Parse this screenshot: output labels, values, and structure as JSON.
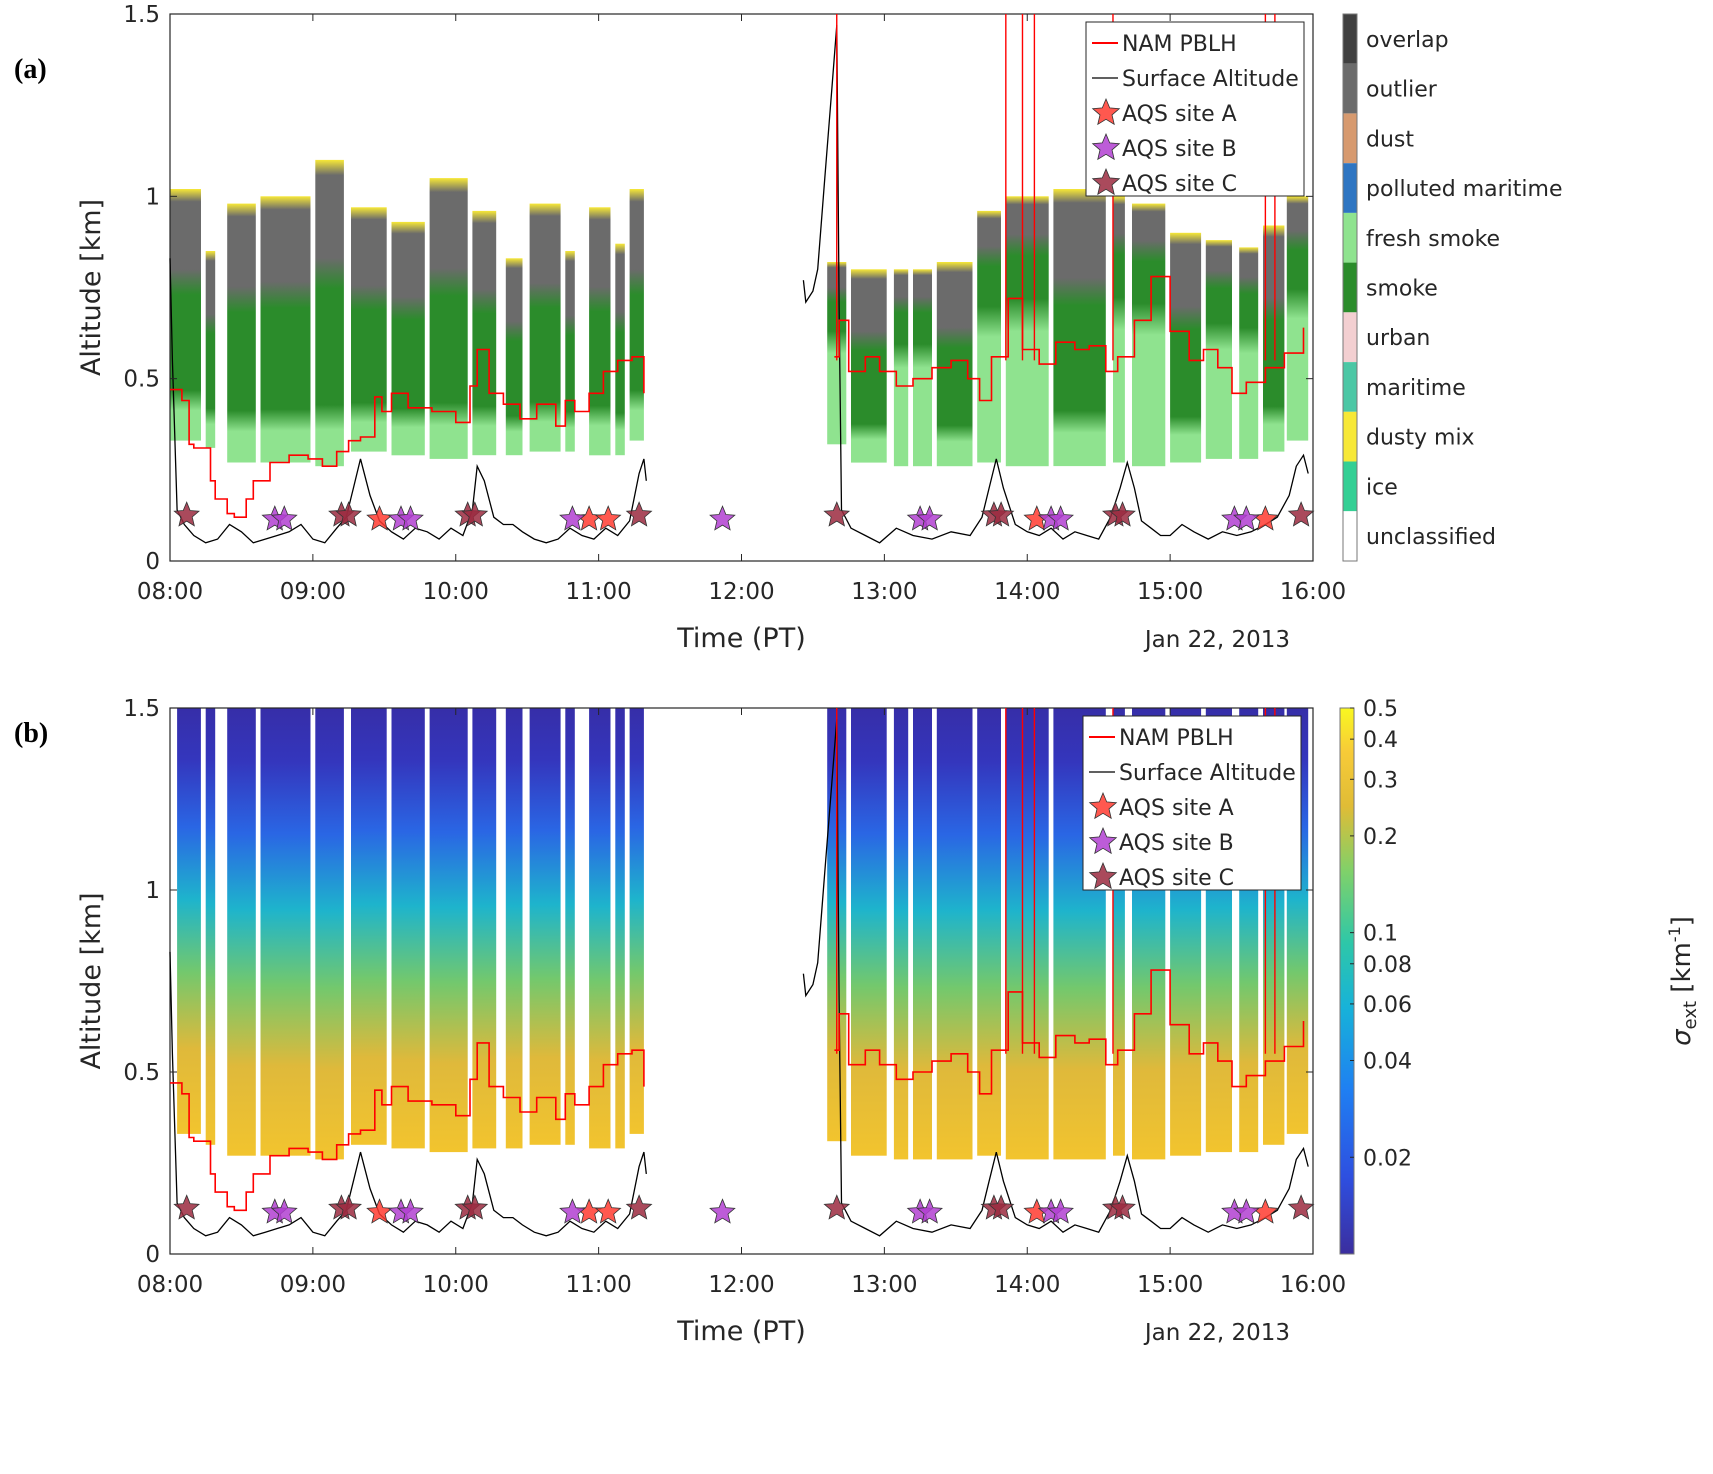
{
  "chart_data": [
    {
      "panel_label": "(a)",
      "type": "heatmap",
      "xlabel": "Time (PT)",
      "ylabel": "Altitude [km]",
      "date_label": "Jan 22, 2013",
      "x_ticks": [
        "08:00",
        "09:00",
        "10:00",
        "11:00",
        "12:00",
        "13:00",
        "14:00",
        "15:00",
        "16:00"
      ],
      "xlim": [
        "08:00",
        "16:00"
      ],
      "y_ticks": [
        0,
        0.5,
        1,
        1.5
      ],
      "ylim": [
        0,
        1.5
      ],
      "legend": {
        "placement": "top-right",
        "entries": [
          "NAM PBLH",
          "Surface Altitude",
          "AQS site A",
          "AQS site B",
          "AQS site C"
        ]
      },
      "colorbar": {
        "type": "categorical",
        "categories": [
          "overlap",
          "outlier",
          "dust",
          "polluted maritime",
          "fresh smoke",
          "smoke",
          "urban",
          "maritime",
          "dusty mix",
          "ice",
          "unclassified"
        ],
        "colors": [
          "#404040",
          "#6b6b6b",
          "#d79a6f",
          "#2e75c2",
          "#8fe38f",
          "#2b8c2b",
          "#f3cfd1",
          "#4cc7a5",
          "#f7e837",
          "#34cf94",
          "#ffffff"
        ]
      },
      "segments": [
        {
          "start": "08:00",
          "end": "08:13",
          "base_km": 0.33,
          "top_km": 1.02
        },
        {
          "start": "08:15",
          "end": "08:19",
          "base_km": 0.31,
          "top_km": 0.85
        },
        {
          "start": "08:24",
          "end": "08:36",
          "base_km": 0.27,
          "top_km": 0.98
        },
        {
          "start": "08:38",
          "end": "08:59",
          "base_km": 0.27,
          "top_km": 1.0
        },
        {
          "start": "09:01",
          "end": "09:13",
          "base_km": 0.26,
          "top_km": 1.1
        },
        {
          "start": "09:16",
          "end": "09:31",
          "base_km": 0.3,
          "top_km": 0.97
        },
        {
          "start": "09:33",
          "end": "09:47",
          "base_km": 0.29,
          "top_km": 0.93
        },
        {
          "start": "09:49",
          "end": "10:05",
          "base_km": 0.28,
          "top_km": 1.05
        },
        {
          "start": "10:07",
          "end": "10:17",
          "base_km": 0.29,
          "top_km": 0.96
        },
        {
          "start": "10:21",
          "end": "10:28",
          "base_km": 0.29,
          "top_km": 0.83
        },
        {
          "start": "10:31",
          "end": "10:44",
          "base_km": 0.3,
          "top_km": 0.98
        },
        {
          "start": "10:46",
          "end": "10:50",
          "base_km": 0.3,
          "top_km": 0.85
        },
        {
          "start": "10:56",
          "end": "11:05",
          "base_km": 0.29,
          "top_km": 0.97
        },
        {
          "start": "11:07",
          "end": "11:11",
          "base_km": 0.29,
          "top_km": 0.87
        },
        {
          "start": "11:13",
          "end": "11:19",
          "base_km": 0.33,
          "top_km": 1.02
        },
        {
          "start": "12:36",
          "end": "12:44",
          "base_km": 0.32,
          "top_km": 0.82
        },
        {
          "start": "12:46",
          "end": "13:01",
          "base_km": 0.27,
          "top_km": 0.8
        },
        {
          "start": "13:04",
          "end": "13:10",
          "base_km": 0.26,
          "top_km": 0.8
        },
        {
          "start": "13:12",
          "end": "13:20",
          "base_km": 0.26,
          "top_km": 0.8
        },
        {
          "start": "13:22",
          "end": "13:37",
          "base_km": 0.26,
          "top_km": 0.82
        },
        {
          "start": "13:39",
          "end": "13:49",
          "base_km": 0.27,
          "top_km": 0.96
        },
        {
          "start": "13:51",
          "end": "14:09",
          "base_km": 0.26,
          "top_km": 1.0
        },
        {
          "start": "14:11",
          "end": "14:33",
          "base_km": 0.26,
          "top_km": 1.02
        },
        {
          "start": "14:36",
          "end": "14:41",
          "base_km": 0.27,
          "top_km": 1.0
        },
        {
          "start": "14:44",
          "end": "14:58",
          "base_km": 0.26,
          "top_km": 0.98
        },
        {
          "start": "15:00",
          "end": "15:13",
          "base_km": 0.27,
          "top_km": 0.9
        },
        {
          "start": "15:15",
          "end": "15:26",
          "base_km": 0.28,
          "top_km": 0.88
        },
        {
          "start": "15:29",
          "end": "15:37",
          "base_km": 0.28,
          "top_km": 0.86
        },
        {
          "start": "15:39",
          "end": "15:48",
          "base_km": 0.3,
          "top_km": 0.92
        },
        {
          "start": "15:49",
          "end": "15:58",
          "base_km": 0.33,
          "top_km": 1.0
        }
      ]
    },
    {
      "panel_label": "(b)",
      "type": "heatmap",
      "xlabel": "Time (PT)",
      "ylabel": "Altitude [km]",
      "date_label": "Jan 22, 2013",
      "x_ticks": [
        "08:00",
        "09:00",
        "10:00",
        "11:00",
        "12:00",
        "13:00",
        "14:00",
        "15:00",
        "16:00"
      ],
      "xlim": [
        "08:00",
        "16:00"
      ],
      "y_ticks": [
        0,
        0.5,
        1,
        1.5
      ],
      "ylim": [
        0,
        1.5
      ],
      "legend": {
        "placement": "top-right",
        "entries": [
          "NAM PBLH",
          "Surface Altitude",
          "AQS site A",
          "AQS site B",
          "AQS site C"
        ]
      },
      "colorbar": {
        "type": "continuous",
        "scale": "log",
        "label_main": "σ",
        "label_sub": "ext",
        "label_unit_open": " [km",
        "label_unit_exp": "-1",
        "label_unit_close": "]",
        "ticks": [
          "0.5",
          "0.4",
          "0.3",
          "0.2",
          "0.1",
          "0.08",
          "0.06",
          "0.04",
          "0.02"
        ],
        "range": [
          0.01,
          0.5
        ]
      },
      "segments": [
        {
          "start": "08:03",
          "end": "08:13",
          "base_km": 0.33
        },
        {
          "start": "08:15",
          "end": "08:19",
          "base_km": 0.3
        },
        {
          "start": "08:24",
          "end": "08:36",
          "base_km": 0.27
        },
        {
          "start": "08:38",
          "end": "08:59",
          "base_km": 0.27
        },
        {
          "start": "09:01",
          "end": "09:13",
          "base_km": 0.26
        },
        {
          "start": "09:16",
          "end": "09:31",
          "base_km": 0.3
        },
        {
          "start": "09:33",
          "end": "09:47",
          "base_km": 0.29
        },
        {
          "start": "09:49",
          "end": "10:05",
          "base_km": 0.28
        },
        {
          "start": "10:07",
          "end": "10:17",
          "base_km": 0.29
        },
        {
          "start": "10:21",
          "end": "10:28",
          "base_km": 0.29
        },
        {
          "start": "10:31",
          "end": "10:44",
          "base_km": 0.3
        },
        {
          "start": "10:46",
          "end": "10:50",
          "base_km": 0.3
        },
        {
          "start": "10:56",
          "end": "11:05",
          "base_km": 0.29
        },
        {
          "start": "11:07",
          "end": "11:11",
          "base_km": 0.29
        },
        {
          "start": "11:13",
          "end": "11:19",
          "base_km": 0.33
        },
        {
          "start": "12:36",
          "end": "12:44",
          "base_km": 0.31
        },
        {
          "start": "12:46",
          "end": "13:01",
          "base_km": 0.27
        },
        {
          "start": "13:04",
          "end": "13:10",
          "base_km": 0.26
        },
        {
          "start": "13:12",
          "end": "13:20",
          "base_km": 0.26
        },
        {
          "start": "13:22",
          "end": "13:37",
          "base_km": 0.26
        },
        {
          "start": "13:39",
          "end": "13:49",
          "base_km": 0.27
        },
        {
          "start": "13:51",
          "end": "14:09",
          "base_km": 0.26
        },
        {
          "start": "14:11",
          "end": "14:33",
          "base_km": 0.26
        },
        {
          "start": "14:36",
          "end": "14:41",
          "base_km": 0.27
        },
        {
          "start": "14:44",
          "end": "14:58",
          "base_km": 0.26
        },
        {
          "start": "15:00",
          "end": "15:13",
          "base_km": 0.27
        },
        {
          "start": "15:15",
          "end": "15:26",
          "base_km": 0.28
        },
        {
          "start": "15:29",
          "end": "15:37",
          "base_km": 0.28
        },
        {
          "start": "15:39",
          "end": "15:48",
          "base_km": 0.3
        },
        {
          "start": "15:49",
          "end": "15:58",
          "base_km": 0.33
        }
      ]
    }
  ],
  "series_colors": {
    "NAM PBLH": "#ff0000",
    "Surface Altitude": "#000000",
    "AQS site A": "#ff3b30",
    "AQS site B": "#b23fd1",
    "AQS site C": "#9b2a3f"
  },
  "nam_pblh": {
    "t": [
      "08:00",
      "08:05",
      "08:08",
      "08:10",
      "08:13",
      "08:17",
      "08:19",
      "08:24",
      "08:27",
      "08:32",
      "08:35",
      "08:42",
      "08:50",
      "08:58",
      "09:04",
      "09:10",
      "09:15",
      "09:20",
      "09:26",
      "09:29",
      "09:33",
      "09:40",
      "09:50",
      "10:00",
      "10:06",
      "10:09",
      "10:14",
      "10:20",
      "10:27",
      "10:34",
      "10:42",
      "10:46",
      "10:50",
      "10:56",
      "11:02",
      "11:08",
      "11:14",
      "11:19",
      "12:39",
      "12:41",
      "12:45",
      "12:52",
      "12:58",
      "13:05",
      "13:12",
      "13:20",
      "13:28",
      "13:35",
      "13:40",
      "13:45",
      "13:52",
      "13:58",
      "14:05",
      "14:12",
      "14:20",
      "14:26",
      "14:33",
      "14:38",
      "14:45",
      "14:52",
      "15:00",
      "15:08",
      "15:14",
      "15:20",
      "15:26",
      "15:32",
      "15:40",
      "15:48",
      "15:56"
    ],
    "km": [
      0.47,
      0.44,
      0.32,
      0.31,
      0.31,
      0.22,
      0.17,
      0.13,
      0.12,
      0.17,
      0.22,
      0.27,
      0.29,
      0.28,
      0.26,
      0.3,
      0.33,
      0.34,
      0.45,
      0.41,
      0.46,
      0.42,
      0.41,
      0.38,
      0.48,
      0.58,
      0.46,
      0.43,
      0.39,
      0.43,
      0.37,
      0.44,
      0.41,
      0.46,
      0.52,
      0.55,
      0.56,
      0.46,
      0.56,
      0.66,
      0.52,
      0.56,
      0.52,
      0.48,
      0.5,
      0.53,
      0.55,
      0.5,
      0.44,
      0.56,
      0.72,
      0.58,
      0.54,
      0.6,
      0.58,
      0.59,
      0.52,
      0.56,
      0.66,
      0.78,
      0.63,
      0.55,
      0.58,
      0.53,
      0.46,
      0.49,
      0.53,
      0.57,
      0.64
    ],
    "spikes": [
      "12:40",
      "13:51",
      "13:58",
      "14:03",
      "14:36",
      "15:40",
      "15:44"
    ]
  },
  "surface_altitude": {
    "t": [
      "08:00",
      "08:01",
      "08:03",
      "08:06",
      "08:10",
      "08:15",
      "08:20",
      "08:25",
      "08:30",
      "08:35",
      "08:40",
      "08:45",
      "08:50",
      "08:55",
      "09:00",
      "09:05",
      "09:10",
      "09:14",
      "09:17",
      "09:20",
      "09:24",
      "09:28",
      "09:33",
      "09:38",
      "09:43",
      "09:48",
      "09:53",
      "09:58",
      "10:03",
      "10:07",
      "10:09",
      "10:12",
      "10:16",
      "10:20",
      "10:24",
      "10:28",
      "10:33",
      "10:38",
      "10:43",
      "10:48",
      "10:53",
      "10:58",
      "11:03",
      "11:08",
      "11:13",
      "11:17",
      "11:19",
      "11:20",
      "12:26",
      "12:27",
      "12:30",
      "12:32",
      "12:35",
      "12:38",
      "12:40",
      "12:41",
      "12:42",
      "12:46",
      "12:52",
      "12:58",
      "13:05",
      "13:12",
      "13:20",
      "13:28",
      "13:36",
      "13:41",
      "13:44",
      "13:47",
      "13:50",
      "13:55",
      "14:00",
      "14:05",
      "14:10",
      "14:15",
      "14:20",
      "14:25",
      "14:30",
      "14:35",
      "14:39",
      "14:42",
      "14:45",
      "14:48",
      "14:52",
      "14:56",
      "15:00",
      "15:05",
      "15:10",
      "15:16",
      "15:22",
      "15:28",
      "15:34",
      "15:40",
      "15:45",
      "15:50",
      "15:53",
      "15:56",
      "15:58"
    ],
    "km": [
      0.83,
      0.55,
      0.14,
      0.1,
      0.07,
      0.05,
      0.06,
      0.1,
      0.08,
      0.05,
      0.06,
      0.07,
      0.08,
      0.1,
      0.06,
      0.05,
      0.09,
      0.12,
      0.2,
      0.28,
      0.18,
      0.11,
      0.08,
      0.06,
      0.09,
      0.08,
      0.06,
      0.09,
      0.07,
      0.14,
      0.26,
      0.22,
      0.12,
      0.1,
      0.1,
      0.08,
      0.06,
      0.05,
      0.06,
      0.09,
      0.07,
      0.06,
      0.09,
      0.07,
      0.11,
      0.24,
      0.28,
      0.22,
      0.77,
      0.71,
      0.74,
      0.8,
      1.05,
      1.3,
      1.47,
      0.7,
      0.14,
      0.09,
      0.07,
      0.05,
      0.09,
      0.07,
      0.06,
      0.08,
      0.07,
      0.12,
      0.2,
      0.28,
      0.2,
      0.1,
      0.08,
      0.07,
      0.09,
      0.06,
      0.08,
      0.07,
      0.06,
      0.12,
      0.2,
      0.27,
      0.2,
      0.11,
      0.09,
      0.07,
      0.07,
      0.1,
      0.08,
      0.06,
      0.08,
      0.07,
      0.08,
      0.1,
      0.12,
      0.18,
      0.26,
      0.29,
      0.24
    ]
  },
  "aqs_markers": {
    "A": [
      "09:28",
      "10:56",
      "11:04",
      "14:04",
      "15:40"
    ],
    "B": [
      "08:44",
      "08:48",
      "09:37",
      "09:41",
      "10:49",
      "11:52",
      "13:15",
      "13:19",
      "14:10",
      "14:14",
      "15:27",
      "15:32"
    ],
    "C": [
      "08:07",
      "09:12",
      "09:15",
      "10:05",
      "10:08",
      "11:17",
      "12:40",
      "13:46",
      "13:49",
      "14:37",
      "14:40",
      "15:55"
    ]
  },
  "aqs_marker_km": 0.12
}
